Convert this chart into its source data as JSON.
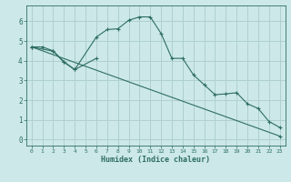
{
  "xlabel": "Humidex (Indice chaleur)",
  "bg_color": "#cce8e8",
  "grid_color": "#b0d0d0",
  "line_color": "#2e6e62",
  "xlim": [
    -0.5,
    23.5
  ],
  "ylim": [
    -0.3,
    6.8
  ],
  "xticks": [
    0,
    1,
    2,
    3,
    4,
    5,
    6,
    7,
    8,
    9,
    10,
    11,
    12,
    13,
    14,
    15,
    16,
    17,
    18,
    19,
    20,
    21,
    22,
    23
  ],
  "yticks": [
    0,
    1,
    2,
    3,
    4,
    5,
    6
  ],
  "line1_x": [
    0,
    1,
    2,
    3,
    4,
    6,
    7,
    8,
    9,
    10,
    11,
    12,
    13,
    14,
    15,
    16,
    17,
    18,
    19,
    20,
    21,
    22,
    23
  ],
  "line1_y": [
    4.7,
    4.7,
    4.5,
    3.95,
    3.55,
    5.2,
    5.58,
    5.62,
    6.05,
    6.22,
    6.22,
    5.38,
    4.12,
    4.12,
    3.28,
    2.78,
    2.28,
    2.32,
    2.38,
    1.82,
    1.58,
    0.92,
    0.62
  ],
  "line2_x": [
    0,
    2,
    3,
    4,
    6
  ],
  "line2_y": [
    4.7,
    4.48,
    3.92,
    3.55,
    4.12
  ],
  "line3_x": [
    0,
    23
  ],
  "line3_y": [
    4.7,
    0.18
  ]
}
